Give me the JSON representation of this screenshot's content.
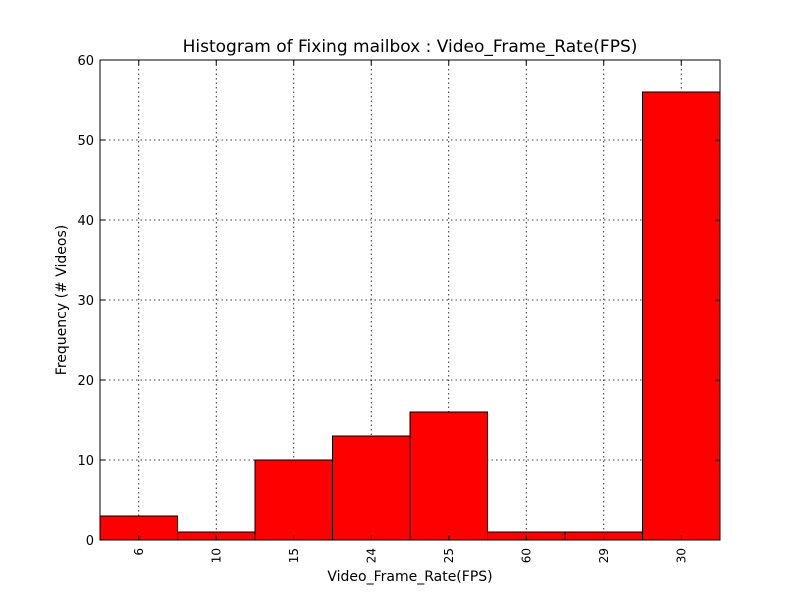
{
  "chart_data": {
    "type": "bar",
    "title": "Histogram of Fixing mailbox : Video_Frame_Rate(FPS)",
    "xlabel": "Video_Frame_Rate(FPS)",
    "ylabel": "Frequency (# Videos)",
    "categories": [
      "6",
      "10",
      "15",
      "24",
      "25",
      "60",
      "29",
      "30"
    ],
    "values": [
      3,
      1,
      10,
      13,
      16,
      1,
      1,
      56
    ],
    "ylim": [
      0,
      60
    ],
    "yticks": [
      "0",
      "10",
      "20",
      "30",
      "40",
      "50",
      "60"
    ],
    "grid": true,
    "bar_color": "#ff0000",
    "edge_color": "#000000"
  }
}
